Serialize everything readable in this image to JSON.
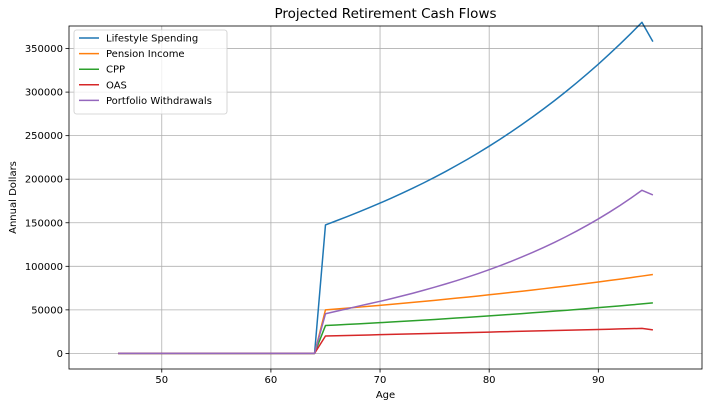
{
  "chart_data": {
    "type": "line",
    "title": "Projected Retirement Cash Flows",
    "xlabel": "Age",
    "ylabel": "Annual Dollars",
    "xlim": [
      41.5,
      99.5
    ],
    "ylim": [
      -17900,
      375900
    ],
    "xticks": [
      50,
      60,
      70,
      80,
      90
    ],
    "yticks": [
      0,
      50000,
      100000,
      150000,
      200000,
      250000,
      300000,
      350000
    ],
    "grid": true,
    "legend_position": "top-left",
    "x": [
      46,
      47,
      48,
      49,
      50,
      51,
      52,
      53,
      54,
      55,
      56,
      57,
      58,
      59,
      60,
      61,
      62,
      63,
      64,
      65,
      66,
      67,
      68,
      69,
      70,
      71,
      72,
      73,
      74,
      75,
      76,
      77,
      78,
      79,
      80,
      81,
      82,
      83,
      84,
      85,
      86,
      87,
      88,
      89,
      90,
      91,
      92,
      93,
      94,
      95
    ],
    "series": [
      {
        "name": "Lifestyle Spending",
        "color": "#1f77b4",
        "values": [
          0,
          0,
          0,
          0,
          0,
          0,
          0,
          0,
          0,
          0,
          0,
          0,
          0,
          0,
          0,
          0,
          0,
          0,
          0,
          147500,
          152300,
          157100,
          162100,
          167300,
          172600,
          178100,
          183800,
          189700,
          195800,
          202200,
          208800,
          215700,
          222800,
          230200,
          237900,
          245900,
          254200,
          262800,
          271700,
          280900,
          290400,
          300300,
          310500,
          321100,
          332100,
          343500,
          355300,
          367500,
          380100,
          358000
        ]
      },
      {
        "name": "Pension Income",
        "color": "#ff7f0e",
        "values": [
          0,
          0,
          0,
          0,
          0,
          0,
          0,
          0,
          0,
          0,
          0,
          0,
          0,
          0,
          0,
          0,
          0,
          0,
          0,
          50000,
          51000,
          52020,
          53060,
          54120,
          55200,
          56300,
          57430,
          58580,
          59750,
          60950,
          62170,
          63410,
          64680,
          65970,
          67290,
          68640,
          70010,
          71410,
          72840,
          74300,
          75790,
          77300,
          78850,
          80430,
          82040,
          83680,
          85350,
          87060,
          88800,
          90600
        ]
      },
      {
        "name": "CPP",
        "color": "#2ca02c",
        "values": [
          0,
          0,
          0,
          0,
          0,
          0,
          0,
          0,
          0,
          0,
          0,
          0,
          0,
          0,
          0,
          0,
          0,
          0,
          0,
          32000,
          32640,
          33290,
          33960,
          34640,
          35330,
          36030,
          36750,
          37490,
          38240,
          39000,
          39780,
          40580,
          41390,
          42220,
          43070,
          43930,
          44810,
          45700,
          46620,
          47550,
          48500,
          49470,
          50460,
          51470,
          52500,
          53550,
          54620,
          55710,
          56830,
          58000
        ]
      },
      {
        "name": "OAS",
        "color": "#d62728",
        "values": [
          0,
          0,
          0,
          0,
          0,
          0,
          0,
          0,
          0,
          0,
          0,
          0,
          0,
          0,
          0,
          0,
          0,
          0,
          0,
          20000,
          20300,
          20600,
          20900,
          21200,
          21500,
          21800,
          22100,
          22400,
          22700,
          23000,
          23300,
          23600,
          23900,
          24200,
          24500,
          24800,
          25100,
          25400,
          25700,
          26000,
          26300,
          26600,
          26900,
          27200,
          27500,
          27800,
          28100,
          28400,
          28700,
          27000
        ]
      },
      {
        "name": "Portfolio Withdrawals",
        "color": "#9467bd",
        "values": [
          0,
          0,
          0,
          0,
          0,
          0,
          0,
          0,
          0,
          0,
          0,
          0,
          0,
          0,
          0,
          0,
          0,
          0,
          0,
          45500,
          48400,
          51300,
          54200,
          57000,
          59800,
          62800,
          65900,
          69100,
          72500,
          76000,
          79700,
          83500,
          87500,
          91700,
          96100,
          100700,
          105600,
          110700,
          116100,
          121700,
          127600,
          133800,
          140300,
          147200,
          154400,
          162000,
          170000,
          178400,
          187300,
          182000
        ]
      }
    ]
  }
}
